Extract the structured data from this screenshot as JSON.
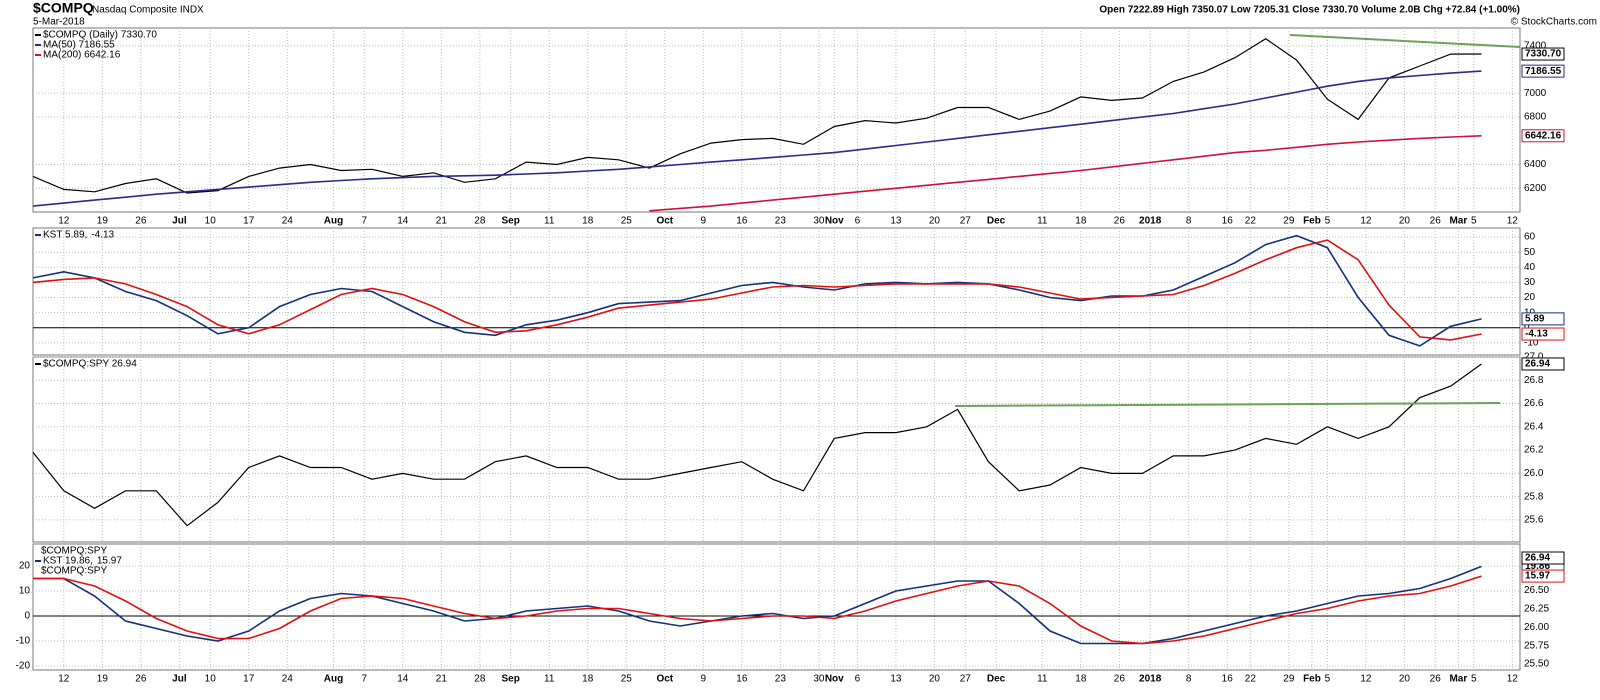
{
  "header": {
    "symbol": "$COMPQ",
    "name": "Nasdaq Composite INDX",
    "date": "5-Mar-2018",
    "quote": "Open 7222.89 High 7350.07 Low 7205.31 Close 7330.70 Volume 2.0B Chg +72.84 (+1.00%)",
    "credit": "© StockCharts.com"
  },
  "chart_data": [
    {
      "type": "line",
      "x": [
        0,
        4,
        8,
        12,
        16,
        20,
        24,
        28,
        32,
        36,
        40,
        44,
        48,
        52,
        56,
        60,
        64,
        68,
        72,
        76,
        80,
        84,
        88,
        92,
        96,
        100,
        104,
        108,
        112,
        116,
        120,
        124,
        128,
        132,
        136,
        140,
        144,
        148,
        152,
        156,
        160,
        164,
        168,
        172,
        176,
        180,
        184,
        188
      ],
      "xlim": [
        0,
        193
      ],
      "xticks": [
        {
          "value": 4,
          "label": "12"
        },
        {
          "value": 9,
          "label": "19"
        },
        {
          "value": 14,
          "label": "26"
        },
        {
          "value": 19,
          "label": "Jul"
        },
        {
          "value": 23,
          "label": "10"
        },
        {
          "value": 28,
          "label": "17"
        },
        {
          "value": 33,
          "label": "24"
        },
        {
          "value": 39,
          "label": "Aug"
        },
        {
          "value": 43,
          "label": "7"
        },
        {
          "value": 48,
          "label": "14"
        },
        {
          "value": 53,
          "label": "21"
        },
        {
          "value": 58,
          "label": "28"
        },
        {
          "value": 62,
          "label": "Sep"
        },
        {
          "value": 67,
          "label": "11"
        },
        {
          "value": 72,
          "label": "18"
        },
        {
          "value": 77,
          "label": "25"
        },
        {
          "value": 82,
          "label": "Oct"
        },
        {
          "value": 87,
          "label": "9"
        },
        {
          "value": 92,
          "label": "16"
        },
        {
          "value": 97,
          "label": "23"
        },
        {
          "value": 102,
          "label": "30"
        },
        {
          "value": 104,
          "label": "Nov"
        },
        {
          "value": 107,
          "label": "6"
        },
        {
          "value": 112,
          "label": "13"
        },
        {
          "value": 117,
          "label": "20"
        },
        {
          "value": 121,
          "label": "27"
        },
        {
          "value": 125,
          "label": "Dec"
        },
        {
          "value": 131,
          "label": "11"
        },
        {
          "value": 136,
          "label": "18"
        },
        {
          "value": 141,
          "label": "26"
        },
        {
          "value": 145,
          "label": "2018"
        },
        {
          "value": 150,
          "label": "8"
        },
        {
          "value": 155,
          "label": "16"
        },
        {
          "value": 158,
          "label": "22"
        },
        {
          "value": 163,
          "label": "29"
        },
        {
          "value": 166,
          "label": "Feb"
        },
        {
          "value": 168,
          "label": "5"
        },
        {
          "value": 173,
          "label": "12"
        },
        {
          "value": 178,
          "label": "20"
        },
        {
          "value": 182,
          "label": "26"
        },
        {
          "value": 185,
          "label": "Mar"
        },
        {
          "value": 187,
          "label": "5"
        },
        {
          "value": 192,
          "label": "12"
        }
      ],
      "ylim": [
        6000,
        7550
      ],
      "yticks": [
        6200,
        6400,
        6800,
        7000,
        7400
      ],
      "grid": true,
      "series": [
        {
          "name": "$COMPQ (Daily) 7330.70",
          "color": "#000000",
          "last_label": "7330.70",
          "values": [
            6300,
            6190,
            6170,
            6240,
            6280,
            6160,
            6180,
            6300,
            6370,
            6400,
            6350,
            6360,
            6300,
            6330,
            6250,
            6280,
            6420,
            6400,
            6460,
            6440,
            6370,
            6490,
            6580,
            6610,
            6620,
            6570,
            6720,
            6770,
            6750,
            6790,
            6880,
            6880,
            6780,
            6850,
            6970,
            6940,
            6960,
            7100,
            7180,
            7300,
            7460,
            7280,
            6950,
            6780,
            7130,
            7230,
            7330,
            7330.7
          ]
        },
        {
          "name": "MA(50) 7186.55",
          "color": "#2a2a8a",
          "last_label": "7186.55",
          "values": [
            6050,
            6075,
            6100,
            6125,
            6150,
            6170,
            6190,
            6210,
            6230,
            6250,
            6265,
            6280,
            6290,
            6300,
            6305,
            6310,
            6320,
            6330,
            6345,
            6360,
            6380,
            6400,
            6420,
            6440,
            6460,
            6480,
            6500,
            6530,
            6560,
            6590,
            6620,
            6650,
            6680,
            6710,
            6740,
            6770,
            6800,
            6830,
            6870,
            6910,
            6960,
            7010,
            7060,
            7100,
            7130,
            7150,
            7170,
            7186.55
          ]
        },
        {
          "name": "MA(200) 6642.16",
          "color": "#d0103a",
          "last_label": "6642.16",
          "values": [
            null,
            null,
            null,
            null,
            null,
            null,
            null,
            null,
            null,
            null,
            null,
            null,
            null,
            null,
            null,
            null,
            null,
            null,
            null,
            null,
            6010,
            6030,
            6050,
            6075,
            6100,
            6125,
            6150,
            6175,
            6200,
            6225,
            6250,
            6275,
            6300,
            6325,
            6350,
            6380,
            6410,
            6440,
            6470,
            6500,
            6520,
            6545,
            6570,
            6590,
            6605,
            6620,
            6632,
            6642.16
          ]
        }
      ]
    },
    {
      "type": "line",
      "x": [
        0,
        4,
        8,
        12,
        16,
        20,
        24,
        28,
        32,
        36,
        40,
        44,
        48,
        52,
        56,
        60,
        64,
        68,
        72,
        76,
        80,
        84,
        88,
        92,
        96,
        100,
        104,
        108,
        112,
        116,
        120,
        124,
        128,
        132,
        136,
        140,
        144,
        148,
        152,
        156,
        160,
        164,
        168,
        172,
        176,
        180,
        184,
        188
      ],
      "xlim": [
        0,
        193
      ],
      "ylim": [
        -18,
        66
      ],
      "yticks": [
        -10,
        0,
        10,
        20,
        30,
        40,
        50,
        60
      ],
      "grid": true,
      "zero_line": true,
      "series": [
        {
          "name": "KST 5.89,",
          "color": "#12307a",
          "last_label": "5.89",
          "values": [
            33,
            37,
            33,
            24,
            18,
            8,
            -4,
            0,
            14,
            22,
            26,
            24,
            14,
            4,
            -3,
            -5,
            2,
            5,
            10,
            16,
            17,
            18,
            23,
            28,
            30,
            27,
            25,
            29,
            30,
            29,
            30,
            29,
            25,
            20,
            18,
            21,
            21,
            25,
            34,
            43,
            55,
            61,
            53,
            20,
            -5,
            -12,
            1,
            5.89
          ]
        },
        {
          "name": "-4.13",
          "color": "#e01010",
          "last_label": "-4.13",
          "values": [
            30,
            32,
            33,
            29,
            22,
            14,
            2,
            -4,
            2,
            12,
            22,
            26,
            22,
            14,
            4,
            -3,
            -2,
            2,
            7,
            13,
            15,
            17,
            19,
            23,
            27,
            28,
            27,
            28,
            29,
            29,
            29,
            29,
            27,
            23,
            19,
            20,
            21,
            22,
            28,
            36,
            45,
            53,
            58,
            45,
            15,
            -6,
            -8,
            -4.13
          ]
        }
      ]
    },
    {
      "type": "line",
      "x": [
        0,
        4,
        8,
        12,
        16,
        20,
        24,
        28,
        32,
        36,
        40,
        44,
        48,
        52,
        56,
        60,
        64,
        68,
        72,
        76,
        80,
        84,
        88,
        92,
        96,
        100,
        104,
        108,
        112,
        116,
        120,
        124,
        128,
        132,
        136,
        140,
        144,
        148,
        152,
        156,
        160,
        164,
        168,
        172,
        176,
        180,
        184,
        188
      ],
      "xlim": [
        0,
        193
      ],
      "ylim": [
        25.41,
        27.0
      ],
      "yticks": [
        25.6,
        25.8,
        {
          "value": 26,
          "label": "26.0"
        },
        26.2,
        26.4,
        26.6,
        26.8,
        {
          "value": 27,
          "label": "27.0"
        }
      ],
      "grid": true,
      "series": [
        {
          "name": "$COMPQ:SPY 26.94",
          "color": "#000000",
          "last_label": "26.94",
          "values": [
            26.18,
            25.85,
            25.7,
            25.85,
            25.85,
            25.55,
            25.75,
            26.05,
            26.15,
            26.05,
            26.05,
            25.95,
            26.0,
            25.95,
            25.95,
            26.1,
            26.15,
            26.05,
            26.05,
            25.95,
            25.95,
            26.0,
            26.05,
            26.1,
            25.95,
            25.85,
            26.3,
            26.35,
            26.35,
            26.4,
            26.55,
            26.1,
            25.85,
            25.9,
            26.05,
            26.0,
            26.0,
            26.15,
            26.15,
            26.2,
            26.3,
            26.25,
            26.4,
            26.3,
            26.4,
            26.65,
            26.75,
            26.94
          ]
        }
      ]
    },
    {
      "type": "line",
      "title": "$COMPQ:SPY",
      "subtitle": "$COMPQ:SPY",
      "x": [
        0,
        4,
        8,
        12,
        16,
        20,
        24,
        28,
        32,
        36,
        40,
        44,
        48,
        52,
        56,
        60,
        64,
        68,
        72,
        76,
        80,
        84,
        88,
        92,
        96,
        100,
        104,
        108,
        112,
        116,
        120,
        124,
        128,
        132,
        136,
        140,
        144,
        148,
        152,
        156,
        160,
        164,
        168,
        172,
        176,
        180,
        184,
        188
      ],
      "xlim": [
        0,
        193
      ],
      "xticks": [
        {
          "value": 4,
          "label": "12"
        },
        {
          "value": 9,
          "label": "19"
        },
        {
          "value": 14,
          "label": "26"
        },
        {
          "value": 19,
          "label": "Jul"
        },
        {
          "value": 23,
          "label": "10"
        },
        {
          "value": 28,
          "label": "17"
        },
        {
          "value": 33,
          "label": "24"
        },
        {
          "value": 39,
          "label": "Aug"
        },
        {
          "value": 43,
          "label": "7"
        },
        {
          "value": 48,
          "label": "14"
        },
        {
          "value": 53,
          "label": "21"
        },
        {
          "value": 58,
          "label": "28"
        },
        {
          "value": 62,
          "label": "Sep"
        },
        {
          "value": 67,
          "label": "11"
        },
        {
          "value": 72,
          "label": "18"
        },
        {
          "value": 77,
          "label": "25"
        },
        {
          "value": 82,
          "label": "Oct"
        },
        {
          "value": 87,
          "label": "9"
        },
        {
          "value": 92,
          "label": "16"
        },
        {
          "value": 97,
          "label": "23"
        },
        {
          "value": 102,
          "label": "30"
        },
        {
          "value": 104,
          "label": "Nov"
        },
        {
          "value": 107,
          "label": "6"
        },
        {
          "value": 112,
          "label": "13"
        },
        {
          "value": 117,
          "label": "20"
        },
        {
          "value": 121,
          "label": "27"
        },
        {
          "value": 125,
          "label": "Dec"
        },
        {
          "value": 131,
          "label": "11"
        },
        {
          "value": 136,
          "label": "18"
        },
        {
          "value": 141,
          "label": "26"
        },
        {
          "value": 145,
          "label": "2018"
        },
        {
          "value": 150,
          "label": "8"
        },
        {
          "value": 155,
          "label": "16"
        },
        {
          "value": 158,
          "label": "22"
        },
        {
          "value": 163,
          "label": "29"
        },
        {
          "value": 166,
          "label": "Feb"
        },
        {
          "value": 168,
          "label": "5"
        },
        {
          "value": 173,
          "label": "12"
        },
        {
          "value": 178,
          "label": "20"
        },
        {
          "value": 182,
          "label": "26"
        },
        {
          "value": 185,
          "label": "Mar"
        },
        {
          "value": 187,
          "label": "5"
        },
        {
          "value": 192,
          "label": "12"
        }
      ],
      "ylim": [
        -21.6,
        28.8
      ],
      "yticks": [
        -20,
        -10,
        0,
        10,
        20
      ],
      "yaxis_side": "left",
      "grid": true,
      "zero_line": true,
      "y2lim": [
        25.42,
        27.13
      ],
      "y2ticks": [
        {
          "value": 25.5,
          "label": "25.50"
        },
        {
          "value": 25.75,
          "label": "25.75"
        },
        {
          "value": 26,
          "label": "26.00"
        },
        {
          "value": 26.25,
          "label": "26.25"
        },
        {
          "value": 26.5,
          "label": "26.50"
        },
        {
          "value": 26.75,
          "label": "26.75"
        }
      ],
      "y2_value": 26.94,
      "y2_value_label": "26.94",
      "series": [
        {
          "name": "KST 19.86,",
          "color": "#12307a",
          "last_label": "19.86",
          "values": [
            15,
            15,
            8,
            -2,
            -5,
            -8,
            -10,
            -6,
            2,
            7,
            9,
            8,
            5,
            2,
            -2,
            -1,
            2,
            3,
            4,
            2,
            -2,
            -4,
            -2,
            0,
            1,
            -1,
            0,
            5,
            10,
            12,
            14,
            14,
            5,
            -6,
            -11,
            -11,
            -11,
            -9,
            -6,
            -3,
            0,
            2,
            5,
            8,
            9,
            11,
            15,
            19.86
          ]
        },
        {
          "name": "15.97",
          "color": "#e01010",
          "last_label": "15.97",
          "values": [
            15,
            15,
            12,
            6,
            -1,
            -6,
            -9,
            -9,
            -5,
            2,
            7,
            8,
            7,
            4,
            1,
            -1,
            0,
            2,
            3,
            3,
            1,
            -1,
            -2,
            -1,
            0,
            0,
            -1,
            2,
            6,
            9,
            12,
            14,
            12,
            5,
            -4,
            -10,
            -11,
            -10,
            -8,
            -5,
            -2,
            1,
            3,
            6,
            8,
            9,
            12,
            15.97
          ]
        }
      ]
    }
  ]
}
